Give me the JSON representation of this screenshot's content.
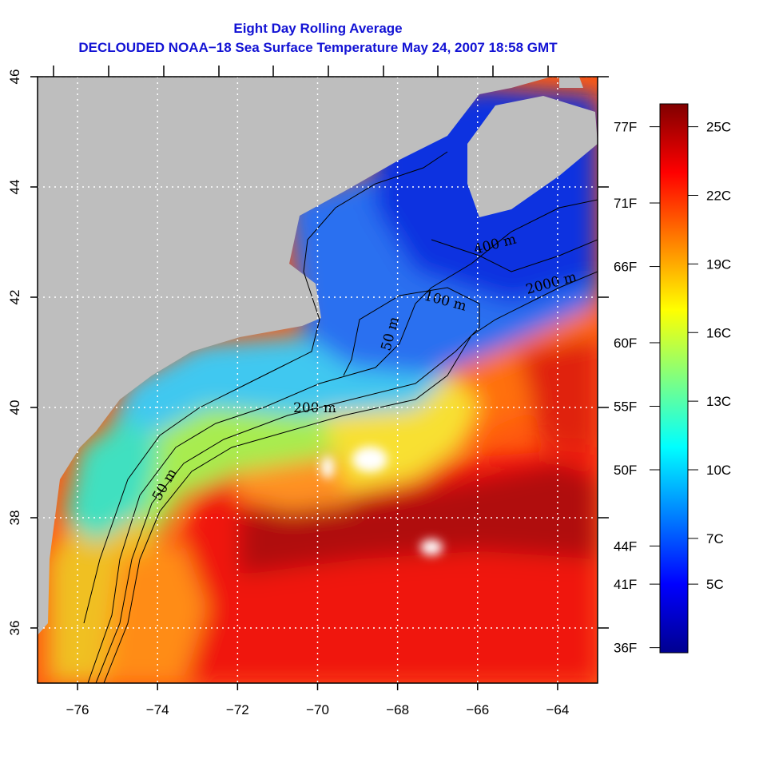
{
  "title": {
    "line1": "Eight Day Rolling Average",
    "line2": "DECLOUDED NOAA−18 Sea Surface Temperature May 24, 2007 18:58 GMT"
  },
  "chart_data": {
    "type": "heatmap",
    "title": "Eight Day Rolling Average / DECLOUDED NOAA-18 Sea Surface Temperature May 24, 2007 18:58 GMT",
    "xlabel": "",
    "ylabel": "",
    "xlim": [
      -77,
      -63
    ],
    "ylim": [
      35,
      46
    ],
    "x_ticks": [
      -76,
      -74,
      -72,
      -70,
      -68,
      -66,
      -64
    ],
    "x_tick_labels": [
      "−76",
      "−74",
      "−72",
      "−70",
      "−68",
      "−66",
      "−64"
    ],
    "y_ticks": [
      36,
      38,
      40,
      42,
      44,
      46
    ],
    "y_tick_labels": [
      "36",
      "38",
      "40",
      "42",
      "44",
      "46"
    ],
    "grid": true,
    "colorbar": {
      "range_c": [
        2,
        26
      ],
      "celsius_ticks": [
        25,
        22,
        19,
        16,
        13,
        10,
        7,
        5
      ],
      "celsius_labels": [
        "25C",
        "22C",
        "19C",
        "16C",
        "13C",
        "10C",
        "7C",
        "5C"
      ],
      "fahrenheit_ticks": [
        77,
        71,
        66,
        60,
        55,
        50,
        44,
        41,
        36
      ],
      "fahrenheit_labels": [
        "77F",
        "71F",
        "66F",
        "60F",
        "55F",
        "50F",
        "44F",
        "41F",
        "36F"
      ],
      "colors": [
        "#00008f",
        "#0000ff",
        "#0080ff",
        "#00ffff",
        "#80ff80",
        "#ffff00",
        "#ff8000",
        "#ff0000",
        "#800000"
      ]
    },
    "contour_labels": [
      "400 m",
      "2000 m",
      "100 m",
      "50 m",
      "200 m",
      "50 m"
    ],
    "land_color": "#bebebe",
    "missing_color": "#ffffff"
  }
}
